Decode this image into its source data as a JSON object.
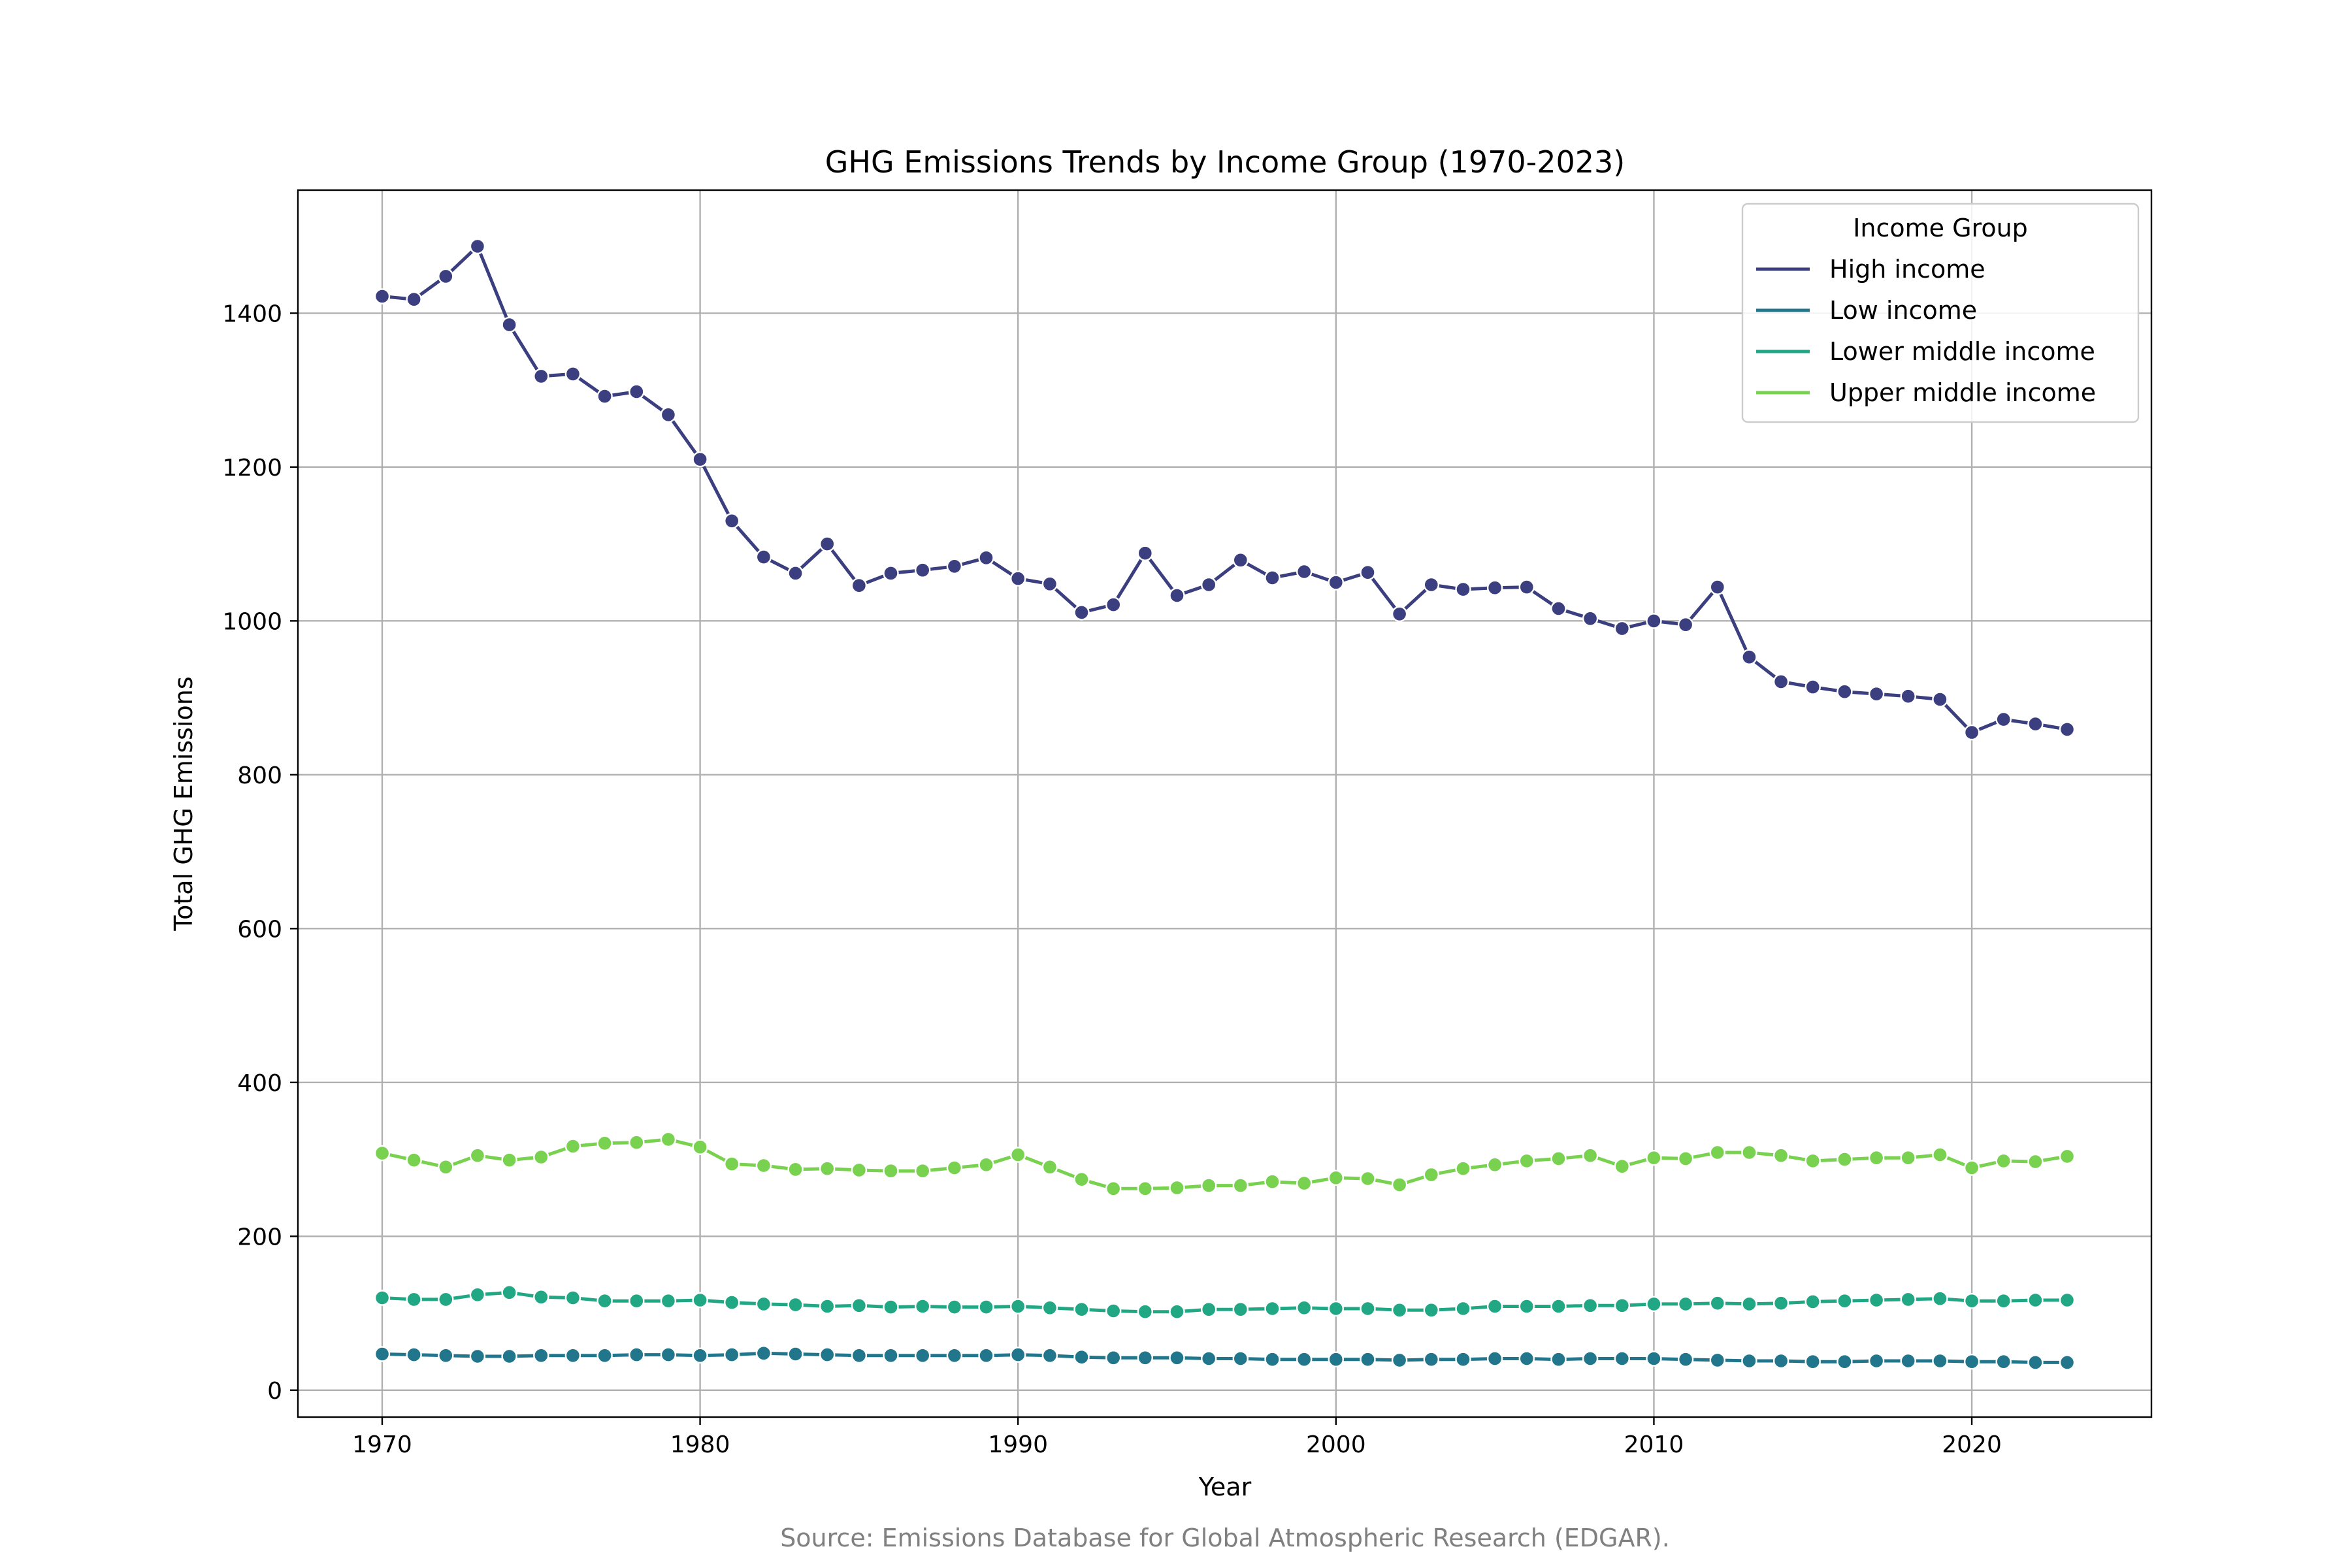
{
  "chart_data": {
    "type": "line",
    "title": "GHG Emissions Trends by Income Group (1970-2023)",
    "xlabel": "Year",
    "ylabel": "Total GHG Emissions",
    "xlim": [
      1967.35,
      2025.65
    ],
    "ylim": [
      -35,
      1560
    ],
    "x_ticks": [
      1970,
      1980,
      1990,
      2000,
      2010,
      2020
    ],
    "y_ticks": [
      0,
      200,
      400,
      600,
      800,
      1000,
      1200,
      1400
    ],
    "grid": true,
    "legend": {
      "title": "Income Group",
      "placement": "top-right"
    },
    "source": "Source: Emissions Database for Global Atmospheric Research (EDGAR).",
    "x": [
      1970,
      1971,
      1972,
      1973,
      1974,
      1975,
      1976,
      1977,
      1978,
      1979,
      1980,
      1981,
      1982,
      1983,
      1984,
      1985,
      1986,
      1987,
      1988,
      1989,
      1990,
      1991,
      1992,
      1993,
      1994,
      1995,
      1996,
      1997,
      1998,
      1999,
      2000,
      2001,
      2002,
      2003,
      2004,
      2005,
      2006,
      2007,
      2008,
      2009,
      2010,
      2011,
      2012,
      2013,
      2014,
      2015,
      2016,
      2017,
      2018,
      2019,
      2020,
      2021,
      2022,
      2023
    ],
    "series": [
      {
        "name": "High income",
        "color": "#3b3f7f",
        "values": [
          1422,
          1418,
          1448,
          1487,
          1385,
          1318,
          1321,
          1292,
          1298,
          1268,
          1210,
          1130,
          1083,
          1062,
          1100,
          1046,
          1062,
          1066,
          1071,
          1082,
          1055,
          1048,
          1011,
          1021,
          1088,
          1033,
          1047,
          1079,
          1056,
          1064,
          1050,
          1063,
          1009,
          1047,
          1041,
          1043,
          1044,
          1016,
          1003,
          990,
          1000,
          995,
          1044,
          953,
          921,
          914,
          908,
          905,
          902,
          898,
          855,
          872,
          866,
          859
        ]
      },
      {
        "name": "Low income",
        "color": "#21768c",
        "values": [
          47,
          46,
          45,
          44,
          44,
          45,
          45,
          45,
          46,
          46,
          45,
          46,
          48,
          47,
          46,
          45,
          45,
          45,
          45,
          45,
          46,
          45,
          43,
          42,
          42,
          42,
          41,
          41,
          40,
          40,
          40,
          40,
          39,
          40,
          40,
          41,
          41,
          40,
          41,
          41,
          41,
          40,
          39,
          38,
          38,
          37,
          37,
          38,
          38,
          38,
          37,
          37,
          36,
          36
        ]
      },
      {
        "name": "Lower middle income",
        "color": "#22a784",
        "values": [
          120,
          118,
          118,
          124,
          127,
          121,
          120,
          116,
          116,
          116,
          117,
          114,
          112,
          111,
          109,
          110,
          108,
          109,
          108,
          108,
          109,
          107,
          105,
          103,
          102,
          102,
          105,
          105,
          106,
          107,
          106,
          106,
          104,
          104,
          106,
          109,
          109,
          109,
          110,
          110,
          112,
          112,
          113,
          112,
          113,
          115,
          116,
          117,
          118,
          119,
          116,
          116,
          117,
          117
        ]
      },
      {
        "name": "Upper middle income",
        "color": "#78d14f",
        "values": [
          308,
          299,
          290,
          305,
          299,
          303,
          317,
          321,
          322,
          326,
          316,
          294,
          292,
          287,
          288,
          286,
          285,
          285,
          289,
          293,
          306,
          290,
          274,
          262,
          262,
          263,
          266,
          266,
          271,
          269,
          276,
          275,
          267,
          280,
          288,
          293,
          298,
          301,
          305,
          291,
          302,
          301,
          309,
          309,
          305,
          298,
          300,
          302,
          302,
          306,
          289,
          298,
          297,
          304
        ]
      }
    ]
  }
}
